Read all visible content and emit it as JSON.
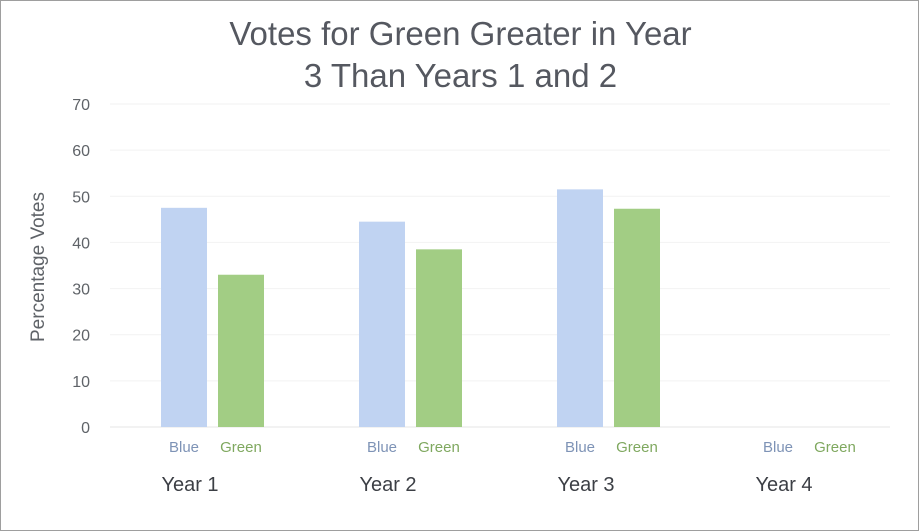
{
  "chart_data": {
    "type": "bar",
    "title": "Votes for Green Greater in Year\n3 Than Years 1 and 2",
    "xlabel": "",
    "ylabel": "Percentage Votes",
    "ylim": [
      0,
      70
    ],
    "yticks": [
      0,
      10,
      20,
      30,
      40,
      50,
      60,
      70
    ],
    "grid": true,
    "legend": "none",
    "categories": [
      "Year 1",
      "Year 2",
      "Year 3",
      "Year 4"
    ],
    "series": [
      {
        "name": "Blue",
        "color": "#c0d3f2",
        "label_color": "#7e93b6",
        "values": [
          47.5,
          44.5,
          51.5,
          null
        ]
      },
      {
        "name": "Green",
        "color": "#a2cd84",
        "label_color": "#7fa85f",
        "values": [
          33,
          38.5,
          47.3,
          null
        ]
      }
    ]
  }
}
